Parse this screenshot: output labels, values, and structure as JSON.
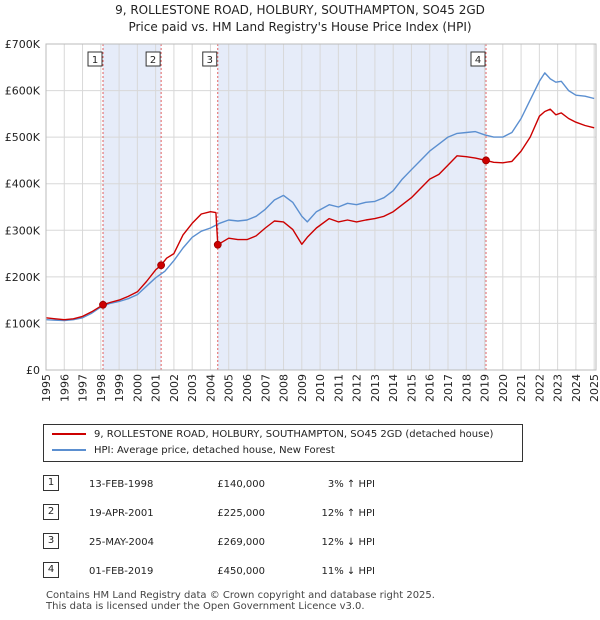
{
  "title_line1": "9, ROLLESTONE ROAD, HOLBURY, SOUTHAMPTON, SO45 2GD",
  "title_line2": "Price paid vs. HM Land Registry's House Price Index (HPI)",
  "colors": {
    "price_line": "#cc0000",
    "hpi_line": "#5b8fd0",
    "shade": "#dde6f7",
    "marker_line": "#e06060"
  },
  "chart_data": {
    "type": "line",
    "xlim": [
      1995,
      2025.1
    ],
    "ylim": [
      0,
      700000
    ],
    "y_ticks": [
      {
        "value": 0,
        "label": "£0"
      },
      {
        "value": 100000,
        "label": "£100K"
      },
      {
        "value": 200000,
        "label": "£200K"
      },
      {
        "value": 300000,
        "label": "£300K"
      },
      {
        "value": 400000,
        "label": "£400K"
      },
      {
        "value": 500000,
        "label": "£500K"
      },
      {
        "value": 600000,
        "label": "£600K"
      },
      {
        "value": 700000,
        "label": "£700K"
      }
    ],
    "x_ticks": [
      "1995",
      "1996",
      "1997",
      "1998",
      "1999",
      "2000",
      "2001",
      "2002",
      "2003",
      "2004",
      "2005",
      "2006",
      "2007",
      "2008",
      "2009",
      "2010",
      "2011",
      "2012",
      "2013",
      "2014",
      "2015",
      "2016",
      "2017",
      "2018",
      "2019",
      "2020",
      "2021",
      "2022",
      "2023",
      "2024",
      "2025"
    ],
    "shaded_ranges": [
      [
        1998.12,
        2001.3
      ],
      [
        2004.4,
        2019.08
      ]
    ],
    "series": [
      {
        "name": "9, ROLLESTONE ROAD, HOLBURY, SOUTHAMPTON, SO45 2GD (detached house)",
        "color": "#cc0000",
        "x": [
          1995.0,
          1995.5,
          1996.0,
          1996.5,
          1997.0,
          1997.5,
          1998.12,
          1998.5,
          1999.0,
          1999.5,
          2000.0,
          2000.5,
          2001.0,
          2001.3,
          2001.6,
          2002.0,
          2002.5,
          2003.0,
          2003.5,
          2004.0,
          2004.3,
          2004.4,
          2005.0,
          2005.5,
          2006.0,
          2006.5,
          2007.0,
          2007.5,
          2008.0,
          2008.5,
          2009.0,
          2009.3,
          2009.8,
          2010.5,
          2011.0,
          2011.5,
          2012.0,
          2012.5,
          2013.0,
          2013.5,
          2014.0,
          2014.5,
          2015.0,
          2015.5,
          2016.0,
          2016.5,
          2017.0,
          2017.5,
          2018.0,
          2018.5,
          2019.08,
          2019.5,
          2020.0,
          2020.5,
          2021.0,
          2021.5,
          2022.0,
          2022.3,
          2022.6,
          2022.9,
          2023.2,
          2023.6,
          2024.0,
          2024.5,
          2025.0
        ],
        "values": [
          112000,
          110000,
          108000,
          110000,
          115000,
          125000,
          140000,
          145000,
          150000,
          158000,
          168000,
          190000,
          215000,
          225000,
          240000,
          250000,
          290000,
          315000,
          335000,
          340000,
          338000,
          269000,
          283000,
          280000,
          280000,
          288000,
          305000,
          320000,
          318000,
          302000,
          270000,
          285000,
          305000,
          325000,
          318000,
          322000,
          318000,
          322000,
          325000,
          330000,
          340000,
          355000,
          370000,
          390000,
          410000,
          420000,
          440000,
          460000,
          458000,
          455000,
          450000,
          446000,
          445000,
          448000,
          470000,
          500000,
          545000,
          555000,
          560000,
          548000,
          552000,
          540000,
          532000,
          525000,
          520000
        ]
      },
      {
        "name": "HPI: Average price, detached house, New Forest",
        "color": "#5b8fd0",
        "x": [
          1995.0,
          1995.5,
          1996.0,
          1996.5,
          1997.0,
          1997.5,
          1998.0,
          1998.5,
          1999.0,
          1999.5,
          2000.0,
          2000.5,
          2001.0,
          2001.5,
          2002.0,
          2002.5,
          2003.0,
          2003.5,
          2004.0,
          2004.5,
          2005.0,
          2005.5,
          2006.0,
          2006.5,
          2007.0,
          2007.5,
          2008.0,
          2008.5,
          2009.0,
          2009.3,
          2009.8,
          2010.5,
          2011.0,
          2011.5,
          2012.0,
          2012.5,
          2013.0,
          2013.5,
          2014.0,
          2014.5,
          2015.0,
          2015.5,
          2016.0,
          2016.5,
          2017.0,
          2017.5,
          2018.0,
          2018.5,
          2019.0,
          2019.5,
          2020.0,
          2020.5,
          2021.0,
          2021.5,
          2022.0,
          2022.3,
          2022.6,
          2022.9,
          2023.2,
          2023.6,
          2024.0,
          2024.5,
          2025.0
        ],
        "values": [
          108000,
          107000,
          106000,
          108000,
          112000,
          122000,
          135000,
          143000,
          147000,
          153000,
          162000,
          180000,
          198000,
          212000,
          235000,
          262000,
          285000,
          298000,
          305000,
          315000,
          322000,
          320000,
          322000,
          330000,
          345000,
          365000,
          375000,
          360000,
          330000,
          318000,
          340000,
          355000,
          350000,
          358000,
          355000,
          360000,
          362000,
          370000,
          385000,
          410000,
          430000,
          450000,
          470000,
          485000,
          500000,
          508000,
          510000,
          512000,
          505000,
          500000,
          500000,
          510000,
          540000,
          580000,
          620000,
          638000,
          625000,
          618000,
          620000,
          600000,
          590000,
          588000,
          583000
        ]
      }
    ],
    "transactions": [
      {
        "num": "1",
        "x": 1998.12,
        "price": 140000
      },
      {
        "num": "2",
        "x": 2001.3,
        "price": 225000
      },
      {
        "num": "3",
        "x": 2004.4,
        "price": 269000
      },
      {
        "num": "4",
        "x": 2019.08,
        "price": 450000
      }
    ]
  },
  "legend": [
    {
      "label": "9, ROLLESTONE ROAD, HOLBURY, SOUTHAMPTON, SO45 2GD (detached house)",
      "color": "#cc0000"
    },
    {
      "label": "HPI: Average price, detached house, New Forest",
      "color": "#5b8fd0"
    }
  ],
  "table": [
    {
      "num": "1",
      "date": "13-FEB-1998",
      "price": "£140,000",
      "hpi": "3% ↑ HPI"
    },
    {
      "num": "2",
      "date": "19-APR-2001",
      "price": "£225,000",
      "hpi": "12% ↑ HPI"
    },
    {
      "num": "3",
      "date": "25-MAY-2004",
      "price": "£269,000",
      "hpi": "12% ↓ HPI"
    },
    {
      "num": "4",
      "date": "01-FEB-2019",
      "price": "£450,000",
      "hpi": "11% ↓ HPI"
    }
  ],
  "footer_line1": "Contains HM Land Registry data © Crown copyright and database right 2025.",
  "footer_line2": "This data is licensed under the Open Government Licence v3.0."
}
